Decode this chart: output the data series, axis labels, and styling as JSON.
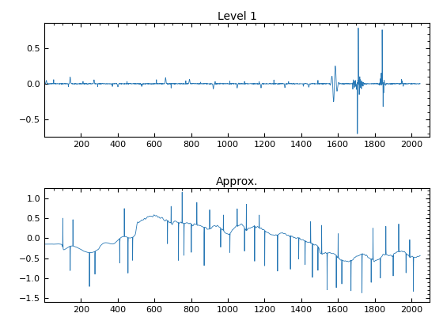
{
  "title1": "Level 1",
  "title2": "Approx.",
  "xlim1": [
    0,
    2100
  ],
  "xlim2": [
    0,
    2100
  ],
  "ylim1": [
    -0.75,
    0.85
  ],
  "ylim2": [
    -1.6,
    1.25
  ],
  "xticks": [
    200,
    400,
    600,
    800,
    1000,
    1200,
    1400,
    1600,
    1800,
    2000
  ],
  "yticks1": [
    -0.5,
    0,
    0.5
  ],
  "yticks2": [
    -1.5,
    -1.0,
    -0.5,
    0,
    0.5,
    1.0
  ],
  "line_color": "#2878b5",
  "bg_color": "#ffffff",
  "n_points": 2048,
  "seed": 7
}
